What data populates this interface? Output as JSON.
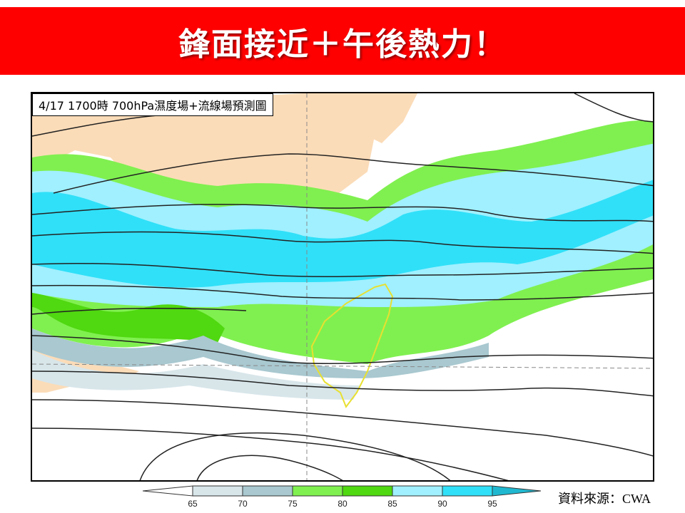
{
  "banner": {
    "title": "鋒面接近＋午後熱力！",
    "color": "#ff0000"
  },
  "map": {
    "label": "4/17 1700時  700hPa濕度場+流線場預測圖",
    "land_color": "#fbdcb8",
    "taiwan_outline_color": "#e8e030"
  },
  "colorbar": {
    "ticks": [
      "65",
      "70",
      "75",
      "80",
      "85",
      "90",
      "95"
    ],
    "colors": [
      "#ffffff",
      "#d8e6ea",
      "#a9c8d0",
      "#80f050",
      "#50d810",
      "#a0f0ff",
      "#30e0f8",
      "#20b8d0"
    ]
  },
  "source": "資料來源：CWA"
}
